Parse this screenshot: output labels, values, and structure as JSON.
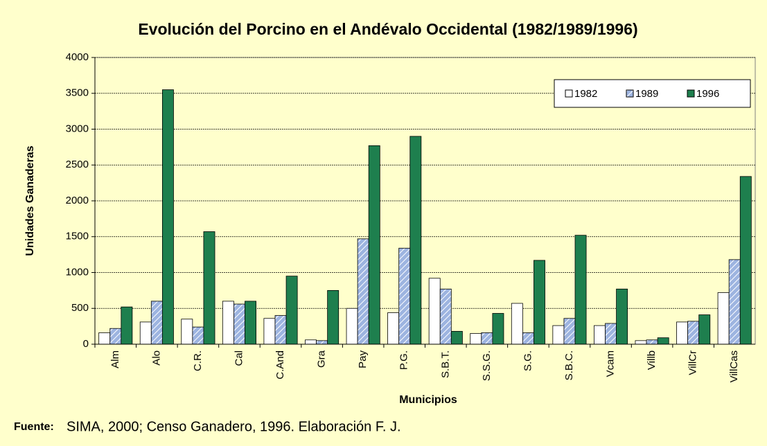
{
  "chart_data": {
    "type": "bar",
    "title": "Evolución del Porcino en el Andévalo Occidental (1982/1989/1996)",
    "x_label": "Municipios",
    "y_label": "Unidades Ganaderas",
    "categories": [
      "Alm",
      "Alo",
      "C.R.",
      "Cal",
      "C.And",
      "Gra",
      "Pay",
      "P.G.",
      "S.B.T.",
      "S.S.G.",
      "S.G.",
      "S.B.C.",
      "Vcam",
      "Villb",
      "VillCr",
      "VillCas"
    ],
    "series": [
      {
        "name": "1982",
        "color": "#ffffff",
        "values": [
          160,
          310,
          350,
          600,
          360,
          60,
          500,
          440,
          920,
          150,
          570,
          260,
          260,
          50,
          310,
          720
        ]
      },
      {
        "name": "1989",
        "color": "#9db4e0",
        "pattern": "hatch",
        "values": [
          220,
          600,
          240,
          560,
          400,
          50,
          1470,
          1340,
          770,
          160,
          160,
          360,
          290,
          60,
          320,
          1180
        ]
      },
      {
        "name": "1996",
        "color": "#1e7f4e",
        "values": [
          520,
          3550,
          1570,
          600,
          950,
          750,
          2770,
          2900,
          180,
          430,
          1170,
          1520,
          770,
          90,
          410,
          2340
        ]
      }
    ],
    "ylim": [
      0,
      4000
    ],
    "yticks": [
      0,
      500,
      1000,
      1500,
      2000,
      2500,
      3000,
      3500,
      4000
    ],
    "grid": true,
    "legend": "top-right",
    "source_label": "Fuente:",
    "source_text": "SIMA, 2000; Censo Ganadero, 1996. Elaboración F. J."
  }
}
